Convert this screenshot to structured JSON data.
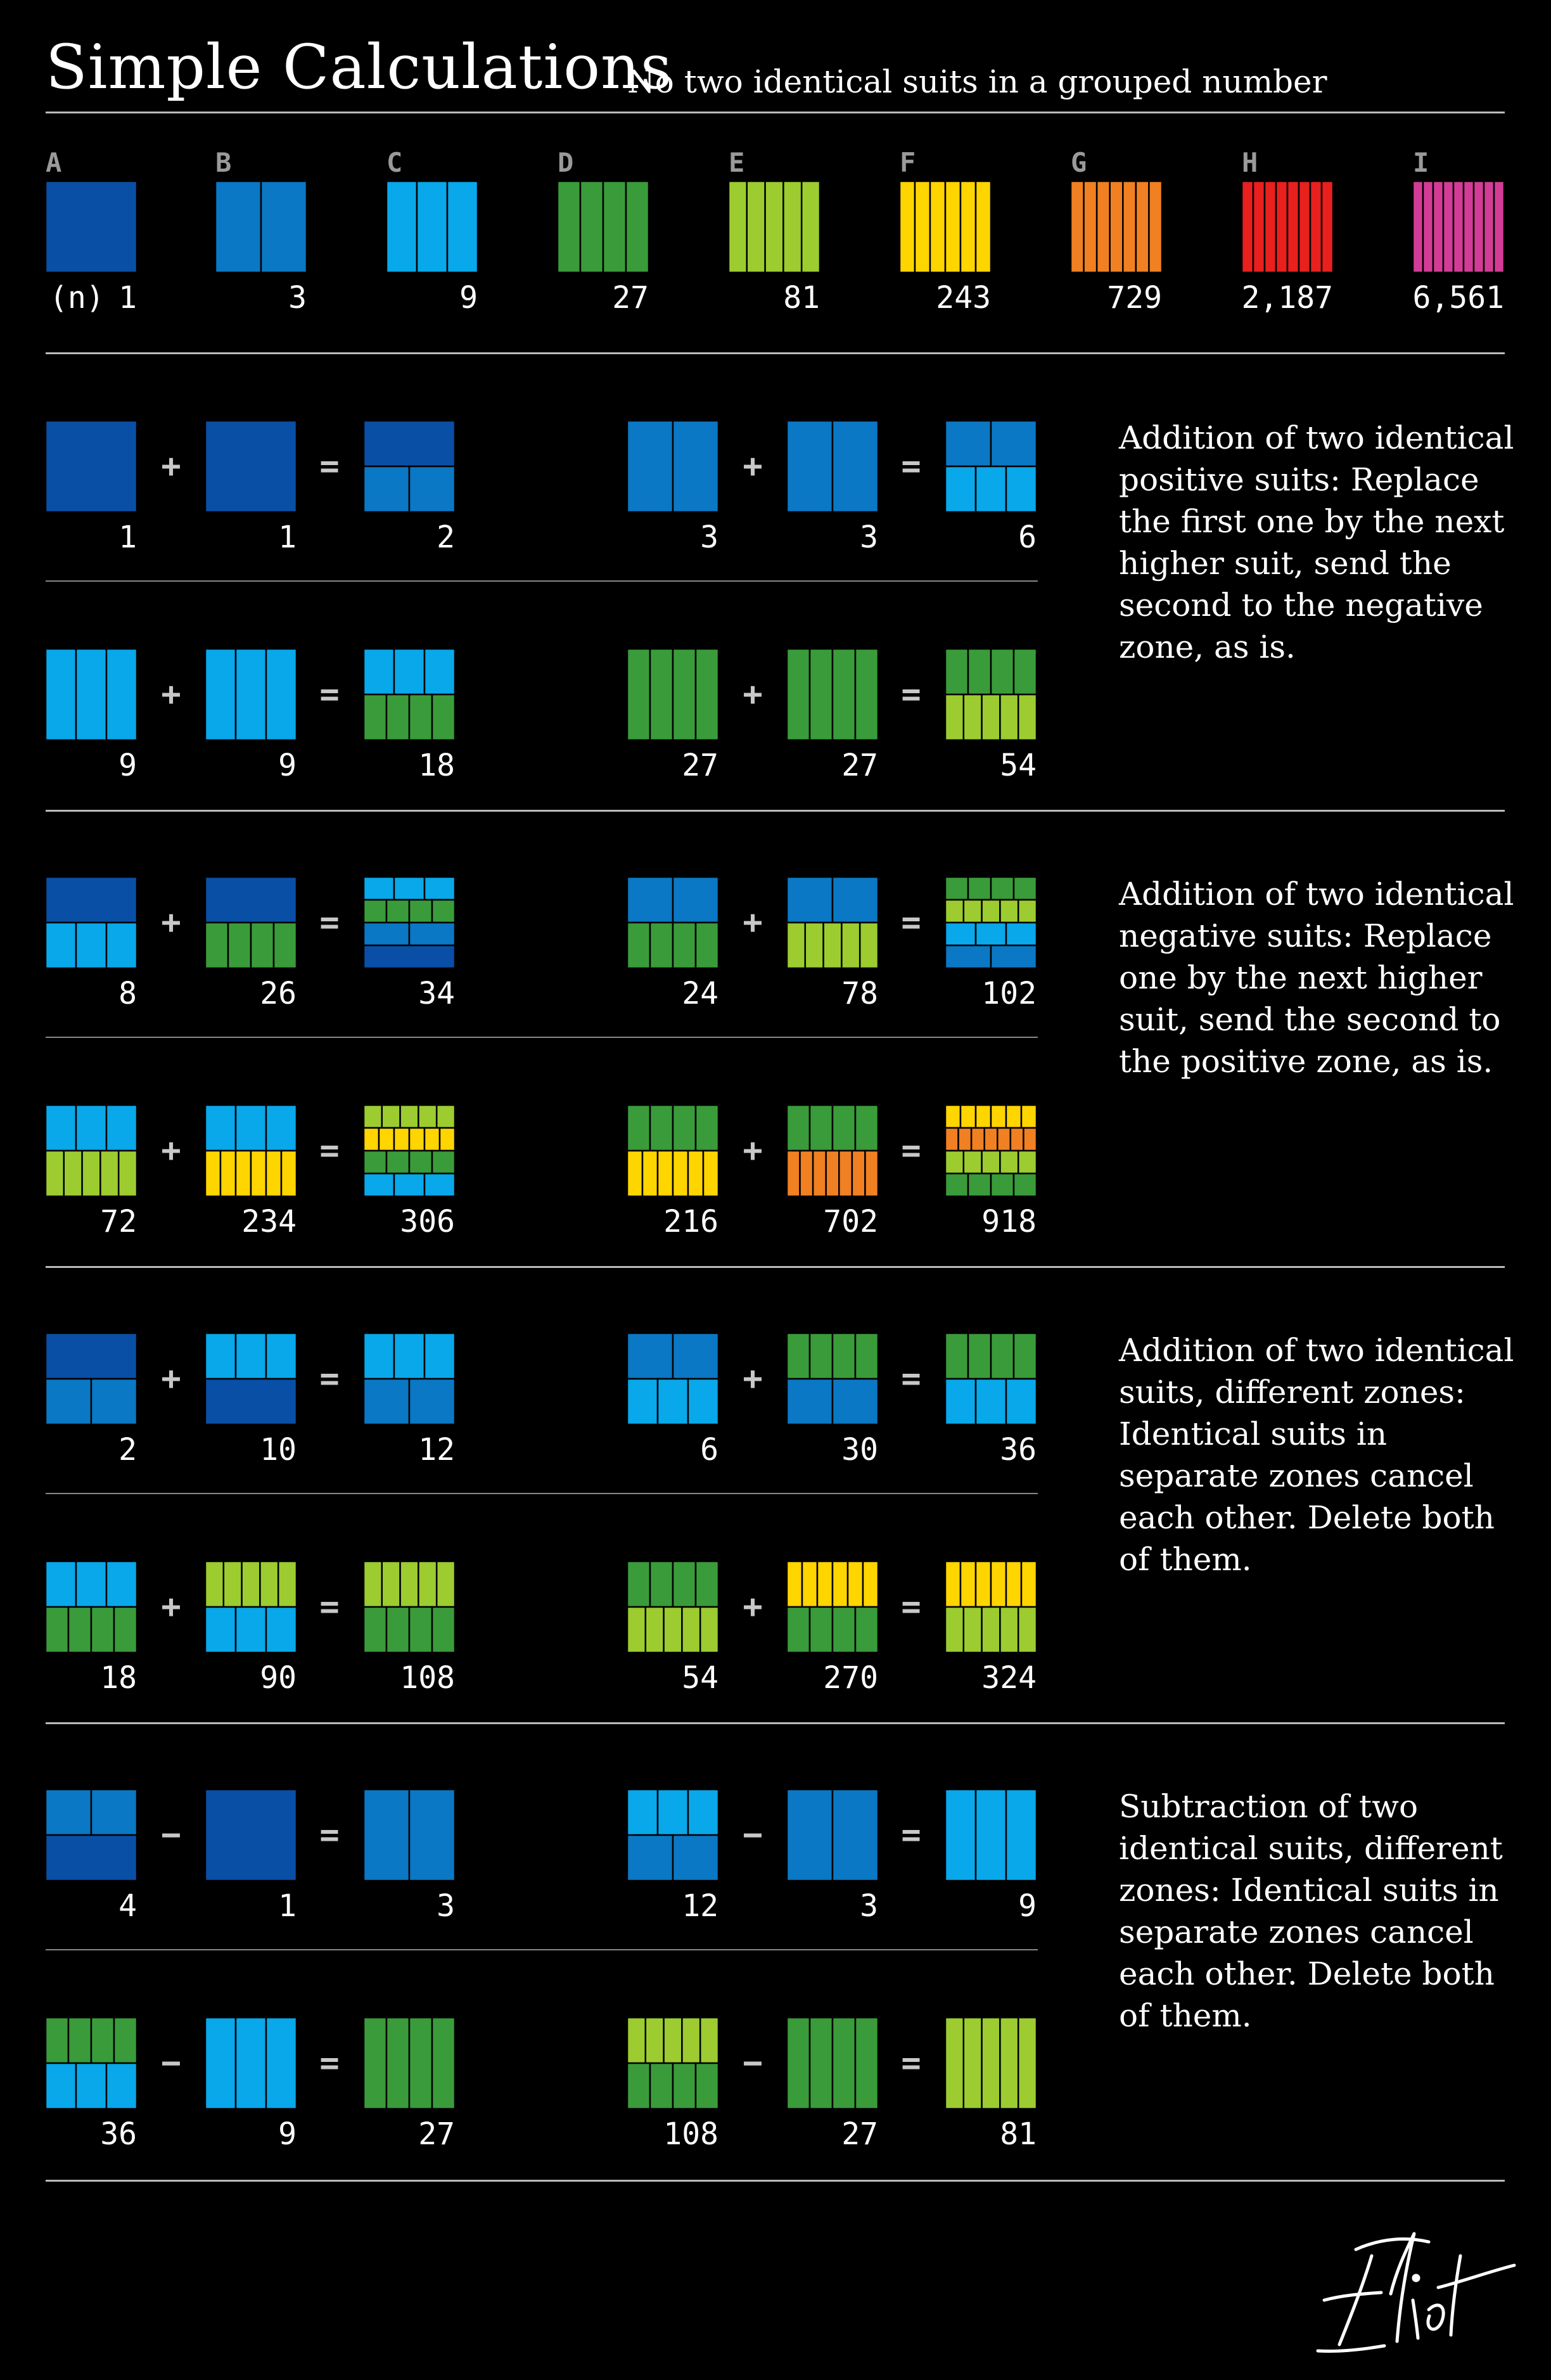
{
  "header": {
    "title": "Simple Calculations",
    "subtitle": "No two identical suits in a grouped number"
  },
  "colors": {
    "A": "#0a4fa6",
    "B": "#0a78c4",
    "C": "#08a8ea",
    "D": "#3a9b3a",
    "E": "#9ccc30",
    "F": "#ffd500",
    "G": "#f08022",
    "H": "#e8201e",
    "I": "#d23c96"
  },
  "legend": {
    "n_label": "(n)",
    "suits": [
      {
        "letter": "A",
        "value": "1"
      },
      {
        "letter": "B",
        "value": "3"
      },
      {
        "letter": "C",
        "value": "9"
      },
      {
        "letter": "D",
        "value": "27"
      },
      {
        "letter": "E",
        "value": "81"
      },
      {
        "letter": "F",
        "value": "243"
      },
      {
        "letter": "G",
        "value": "729"
      },
      {
        "letter": "H",
        "value": "2,187"
      },
      {
        "letter": "I",
        "value": "6,561"
      }
    ]
  },
  "sections": [
    {
      "description": "Addition of two identical positive suits: Replace the first one by the next higher suit, send the second to the negative zone, as is.",
      "rows": [
        [
          {
            "a": {
              "value": "1",
              "pos": "A"
            },
            "op": "+",
            "b": {
              "value": "1",
              "pos": "A"
            },
            "result": {
              "value": "2",
              "pos": "B",
              "neg": [
                "A"
              ]
            }
          },
          {
            "a": {
              "value": "3",
              "pos": "B"
            },
            "op": "+",
            "b": {
              "value": "3",
              "pos": "B"
            },
            "result": {
              "value": "6",
              "pos": "C",
              "neg": [
                "B"
              ]
            }
          }
        ],
        [
          {
            "a": {
              "value": "9",
              "pos": "C"
            },
            "op": "+",
            "b": {
              "value": "9",
              "pos": "C"
            },
            "result": {
              "value": "18",
              "pos": "D",
              "neg": [
                "C"
              ]
            }
          },
          {
            "a": {
              "value": "27",
              "pos": "D"
            },
            "op": "+",
            "b": {
              "value": "27",
              "pos": "D"
            },
            "result": {
              "value": "54",
              "pos": "E",
              "neg": [
                "D"
              ]
            }
          }
        ]
      ]
    },
    {
      "description": "Addition of two identical negative suits: Replace one by the next higher suit, send the second to the positive zone, as is.",
      "rows": [
        [
          {
            "a": {
              "value": "8",
              "pos": "C",
              "neg": [
                "A"
              ]
            },
            "op": "+",
            "b": {
              "value": "26",
              "pos": "D",
              "neg": [
                "A"
              ]
            },
            "result": {
              "value": "34",
              "pos": "A",
              "neg": [
                "C",
                "D",
                "B"
              ]
            }
          },
          {
            "a": {
              "value": "24",
              "pos": "D",
              "neg": [
                "B"
              ]
            },
            "op": "+",
            "b": {
              "value": "78",
              "pos": "E",
              "neg": [
                "B"
              ]
            },
            "result": {
              "value": "102",
              "pos": "B",
              "neg": [
                "D",
                "E",
                "C"
              ]
            }
          }
        ],
        [
          {
            "a": {
              "value": "72",
              "pos": "E",
              "neg": [
                "C"
              ]
            },
            "op": "+",
            "b": {
              "value": "234",
              "pos": "F",
              "neg": [
                "C"
              ]
            },
            "result": {
              "value": "306",
              "pos": "C",
              "neg": [
                "E",
                "F",
                "D"
              ]
            }
          },
          {
            "a": {
              "value": "216",
              "pos": "F",
              "neg": [
                "D"
              ]
            },
            "op": "+",
            "b": {
              "value": "702",
              "pos": "G",
              "neg": [
                "D"
              ]
            },
            "result": {
              "value": "918",
              "pos": "D",
              "neg": [
                "F",
                "G",
                "E"
              ]
            }
          }
        ]
      ]
    },
    {
      "description": "Addition of two identical suits, different zones: Identical suits in separate zones cancel each other. Delete both of them.",
      "rows": [
        [
          {
            "a": {
              "value": "2",
              "pos": "B",
              "neg": [
                "A"
              ]
            },
            "op": "+",
            "b": {
              "value": "10",
              "pos": "A",
              "neg": [
                "C"
              ]
            },
            "result": {
              "value": "12",
              "pos": "B",
              "neg": [
                "C"
              ]
            }
          },
          {
            "a": {
              "value": "6",
              "pos": "C",
              "neg": [
                "B"
              ]
            },
            "op": "+",
            "b": {
              "value": "30",
              "pos": "B",
              "neg": [
                "D"
              ]
            },
            "result": {
              "value": "36",
              "pos": "C",
              "neg": [
                "D"
              ]
            }
          }
        ],
        [
          {
            "a": {
              "value": "18",
              "pos": "D",
              "neg": [
                "C"
              ]
            },
            "op": "+",
            "b": {
              "value": "90",
              "pos": "C",
              "neg": [
                "E"
              ]
            },
            "result": {
              "value": "108",
              "pos": "D",
              "neg": [
                "E"
              ]
            }
          },
          {
            "a": {
              "value": "54",
              "pos": "E",
              "neg": [
                "D"
              ]
            },
            "op": "+",
            "b": {
              "value": "270",
              "pos": "D",
              "neg": [
                "F"
              ]
            },
            "result": {
              "value": "324",
              "pos": "E",
              "neg": [
                "F"
              ]
            }
          }
        ]
      ]
    },
    {
      "description": "Subtraction of two identical suits, different zones: Identical suits in separate zones cancel each other. Delete both of them.",
      "rows": [
        [
          {
            "a": {
              "value": "4",
              "pos": "A",
              "neg": [
                "B"
              ]
            },
            "op": "−",
            "b": {
              "value": "1",
              "pos": "A"
            },
            "result": {
              "value": "3",
              "pos": "B"
            }
          },
          {
            "a": {
              "value": "12",
              "pos": "B",
              "neg": [
                "C"
              ]
            },
            "op": "−",
            "b": {
              "value": "3",
              "pos": "B"
            },
            "result": {
              "value": "9",
              "pos": "C"
            }
          }
        ],
        [
          {
            "a": {
              "value": "36",
              "pos": "C",
              "neg": [
                "D"
              ]
            },
            "op": "−",
            "b": {
              "value": "9",
              "pos": "C"
            },
            "result": {
              "value": "27",
              "pos": "D"
            }
          },
          {
            "a": {
              "value": "108",
              "pos": "D",
              "neg": [
                "E"
              ]
            },
            "op": "−",
            "b": {
              "value": "27",
              "pos": "D"
            },
            "result": {
              "value": "81",
              "pos": "E"
            }
          }
        ]
      ]
    }
  ],
  "signature": "Eliot"
}
